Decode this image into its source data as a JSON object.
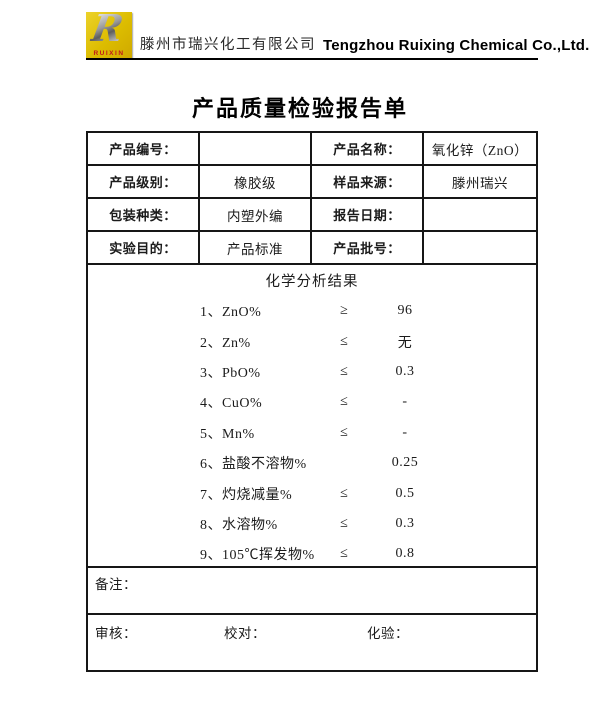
{
  "header": {
    "logo": {
      "letter": "R",
      "brand": "RUIXIN",
      "bg_color": "#DCBC00",
      "brand_color": "#C0181C"
    },
    "company_cn": "滕州市瑞兴化工有限公司",
    "company_en": "Tengzhou Ruixing Chemical Co.,Ltd."
  },
  "title": "产品质量检验报告单",
  "info": {
    "rows": [
      {
        "cells": [
          "产品编号：",
          "",
          "产品名称：",
          "氧化锌（ZnO）"
        ]
      },
      {
        "cells": [
          "产品级别：",
          "橡胶级",
          "样品来源：",
          "滕州瑞兴"
        ]
      },
      {
        "cells": [
          "包装种类：",
          "内塑外编",
          "报告日期：",
          ""
        ]
      },
      {
        "cells": [
          "实验目的：",
          "产品标准",
          "产品批号：",
          ""
        ]
      }
    ]
  },
  "analysis": {
    "title": "化学分析结果",
    "items": [
      {
        "label": "1、ZnO%",
        "op": "≥",
        "value": "96"
      },
      {
        "label": "2、Zn%",
        "op": "≤",
        "value": "无"
      },
      {
        "label": "3、PbO%",
        "op": "≤",
        "value": "0.3"
      },
      {
        "label": "4、CuO%",
        "op": "≤",
        "value": "-"
      },
      {
        "label": "5、Mn%",
        "op": "≤",
        "value": "-"
      },
      {
        "label": "6、盐酸不溶物%",
        "op": "",
        "value": "0.25"
      },
      {
        "label": "7、灼烧减量%",
        "op": "≤",
        "value": "0.5"
      },
      {
        "label": "8、水溶物%",
        "op": "≤",
        "value": "0.3"
      },
      {
        "label": "9、105℃挥发物%",
        "op": "≤",
        "value": "0.8"
      }
    ]
  },
  "footer": {
    "notes_label": "备注：",
    "signatures": [
      {
        "label": "审核："
      },
      {
        "label": "校对："
      },
      {
        "label": "化验："
      }
    ]
  }
}
